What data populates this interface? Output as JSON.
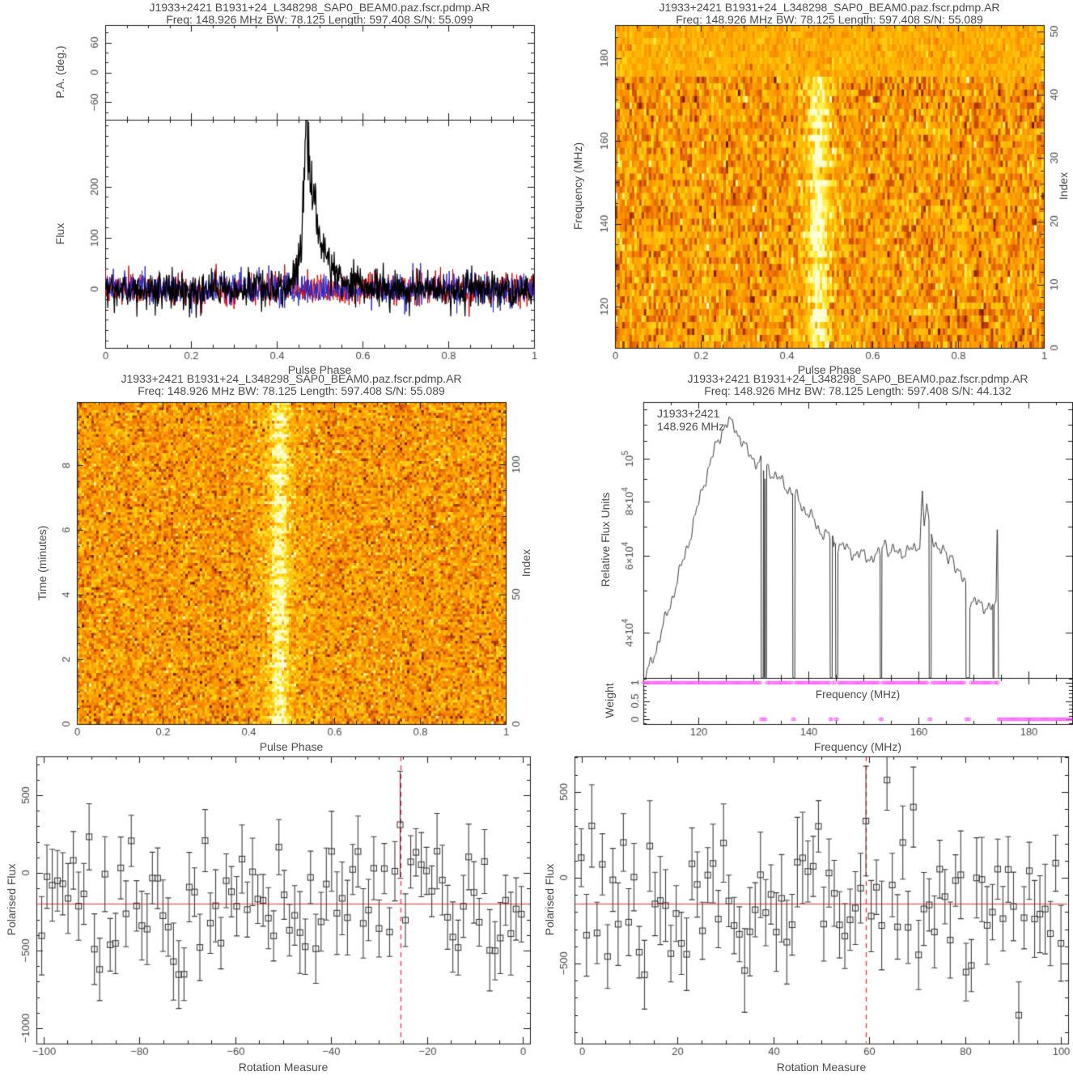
{
  "page": {
    "background": "#ffffff",
    "frame_color": "#1a1a1a",
    "text_color": "#4a4a4a"
  },
  "chart_data": [
    {
      "id": "pulse_profile",
      "type": "line",
      "title": "J1933+2421 B1931+24_L348298_SAP0_BEAM0.paz.fscr.pdmp.AR",
      "subtitle": "Freq: 148.926 MHz BW: 78.125 Length: 597.408 S/N: 55.099",
      "xlabel": "Pulse Phase",
      "xlim": [
        0,
        1
      ],
      "xminor": 0.05,
      "xticks": [
        {
          "v": 0,
          "l": "0"
        },
        {
          "v": 0.2,
          "l": "0.2"
        },
        {
          "v": 0.4,
          "l": "0.4"
        },
        {
          "v": 0.6,
          "l": "0.6"
        },
        {
          "v": 0.8,
          "l": "0.8"
        },
        {
          "v": 1,
          "l": "1"
        }
      ],
      "pa": {
        "ylabel": "P.A. (deg.)",
        "ylim": [
          -95,
          95
        ],
        "yminor": 20,
        "yticks": [
          {
            "v": 60,
            "l": "60"
          },
          {
            "v": 0,
            "l": "0"
          },
          {
            "v": -60,
            "l": "−60"
          }
        ]
      },
      "flux": {
        "ylabel": "Flux",
        "ylim": [
          -115,
          331
        ],
        "yminor": 20,
        "yticks": [
          {
            "v": 0,
            "l": "0"
          },
          {
            "v": 100,
            "l": "100"
          },
          {
            "v": 200,
            "l": "200"
          }
        ],
        "series": [
          {
            "name": "total-intensity",
            "color": "#000000",
            "noise_sigma": 18,
            "pulse": {
              "onset": 0.432,
              "peak_phase": 0.468,
              "peak_flux": 320,
              "rise_tau": 0.01,
              "fall_tau": 0.03,
              "end": 0.63
            }
          },
          {
            "name": "linear-polarisation",
            "color": "#d40000",
            "noise_sigma": 15
          },
          {
            "name": "circular-polarisation",
            "color": "#2626c8",
            "noise_sigma": 15
          }
        ]
      },
      "bins": 840,
      "seed": 7
    },
    {
      "id": "frequency_vs_phase",
      "type": "heatmap",
      "title": "J1933+2421 B1931+24_L348298_SAP0_BEAM0.paz.fscr.pdmp.AR",
      "subtitle": "Freq: 148.926 MHz BW: 78.125 Length: 597.408 S/N: 55.089",
      "xlabel": "Pulse Phase",
      "ylabel": "Frequency (MHz)",
      "ylabel_right": "Index",
      "xlim": [
        0,
        1
      ],
      "xminor": 0.05,
      "xticks": [
        {
          "v": 0,
          "l": "0"
        },
        {
          "v": 0.2,
          "l": "0.2"
        },
        {
          "v": 0.4,
          "l": "0.4"
        },
        {
          "v": 0.6,
          "l": "0.6"
        },
        {
          "v": 0.8,
          "l": "0.8"
        },
        {
          "v": 1,
          "l": "1"
        }
      ],
      "ylim": [
        110,
        188
      ],
      "yminor": 5,
      "yticks": [
        {
          "v": 120,
          "l": "120"
        },
        {
          "v": 140,
          "l": "140"
        },
        {
          "v": 160,
          "l": "160"
        },
        {
          "v": 180,
          "l": "180"
        }
      ],
      "right_lim": [
        0,
        51
      ],
      "right_minor": 2,
      "right_ticks": [
        {
          "v": 0,
          "l": "0"
        },
        {
          "v": 10,
          "l": "10"
        },
        {
          "v": 20,
          "l": "20"
        },
        {
          "v": 30,
          "l": "30"
        },
        {
          "v": 40,
          "l": "40"
        },
        {
          "v": 50,
          "l": "50"
        }
      ],
      "cols": 178,
      "rows": 50,
      "top_uniform_rows": 8,
      "stripe": {
        "center": 0.474,
        "sigma": 0.016,
        "amp": 0.42,
        "halo_sigma": 0.05,
        "halo_amp": 0.1
      },
      "seed": 21
    },
    {
      "id": "time_vs_phase",
      "type": "heatmap",
      "title": "J1933+2421 B1931+24_L348298_SAP0_BEAM0.paz.fscr.pdmp.AR",
      "subtitle": "Freq: 148.926 MHz BW: 78.125 Length: 597.408 S/N: 55.089",
      "xlabel": "Pulse Phase",
      "ylabel": "Time (minutes)",
      "ylabel_right": "Index",
      "xlim": [
        0,
        1
      ],
      "xminor": 0.05,
      "xticks": [
        {
          "v": 0,
          "l": "0"
        },
        {
          "v": 0.2,
          "l": "0.2"
        },
        {
          "v": 0.4,
          "l": "0.4"
        },
        {
          "v": 0.6,
          "l": "0.6"
        },
        {
          "v": 0.8,
          "l": "0.8"
        },
        {
          "v": 1,
          "l": "1"
        }
      ],
      "ylim": [
        0,
        9.96
      ],
      "yminor": 0.5,
      "yticks": [
        {
          "v": 0,
          "l": "0"
        },
        {
          "v": 2,
          "l": "2"
        },
        {
          "v": 4,
          "l": "4"
        },
        {
          "v": 6,
          "l": "6"
        },
        {
          "v": 8,
          "l": "8"
        }
      ],
      "right_lim": [
        0,
        124
      ],
      "right_minor": 10,
      "right_ticks": [
        {
          "v": 0,
          "l": "0"
        },
        {
          "v": 50,
          "l": "50"
        },
        {
          "v": 100,
          "l": "100"
        }
      ],
      "cols": 178,
      "rows": 120,
      "top_uniform_rows": 0,
      "stripe": {
        "center": 0.472,
        "sigma": 0.013,
        "amp": 0.45,
        "halo_sigma": 0.045,
        "halo_amp": 0.12
      },
      "seed": 33
    },
    {
      "id": "bandpass_spectrum",
      "type": "line",
      "title": "J1933+2421 B1931+24_L348298_SAP0_BEAM0.paz.fscr.pdmp.AR",
      "subtitle": "Freq: 148.926 MHz BW: 78.125 Length: 597.408 S/N: 44.132",
      "xlabel": "Frequency (MHz)",
      "ylabel": "Relative Flux Units",
      "annotation": {
        "line1": "J1933+2421",
        "line2": "148.926 MHz"
      },
      "xlim": [
        110,
        188
      ],
      "xminor": 5,
      "xticks": [
        {
          "v": 120,
          "l": "120"
        },
        {
          "v": 140,
          "l": "140"
        },
        {
          "v": 160,
          "l": "160"
        },
        {
          "v": 180,
          "l": "180"
        }
      ],
      "ylog": true,
      "ylim": [
        31500,
        135000
      ],
      "yticks": [
        {
          "v": 40000,
          "l": "4×10^4"
        },
        {
          "v": 50000
        },
        {
          "v": 60000,
          "l": "6×10^4"
        },
        {
          "v": 70000
        },
        {
          "v": 80000,
          "l": "8×10^4"
        },
        {
          "v": 90000
        },
        {
          "v": 100000,
          "l": "10^5"
        },
        {
          "v": 110000
        },
        {
          "v": 120000
        },
        {
          "v": 130000
        }
      ],
      "line_color": "#333333",
      "draw_range": [
        110.3,
        174.68
      ],
      "control_points": [
        [
          110.3,
          31500
        ],
        [
          111,
          33000
        ],
        [
          113,
          39000
        ],
        [
          115,
          47000
        ],
        [
          117,
          57000
        ],
        [
          119,
          70000
        ],
        [
          121,
          88000
        ],
        [
          123,
          105000
        ],
        [
          124.5,
          118000
        ],
        [
          125.5,
          121000
        ],
        [
          126.5,
          119000
        ],
        [
          127.5,
          113000
        ],
        [
          129,
          103000
        ],
        [
          130.5,
          99000
        ],
        [
          131.3,
          98000
        ],
        [
          132.5,
          96000
        ],
        [
          134,
          91000
        ],
        [
          135.5,
          88000
        ],
        [
          137,
          84000
        ],
        [
          138,
          81000
        ],
        [
          140,
          75000
        ],
        [
          142,
          69000
        ],
        [
          143.8,
          66000
        ],
        [
          144.9,
          64500
        ],
        [
          147,
          62000
        ],
        [
          149,
          60500
        ],
        [
          151,
          59500
        ],
        [
          153,
          60000
        ],
        [
          153.9,
          65500
        ],
        [
          154.6,
          61500
        ],
        [
          156,
          61000
        ],
        [
          158,
          61500
        ],
        [
          159.5,
          62000
        ],
        [
          160.3,
          65000
        ],
        [
          160.75,
          84000
        ],
        [
          161.1,
          70000
        ],
        [
          161.55,
          79000
        ],
        [
          161.9,
          70000
        ],
        [
          162.6,
          66000
        ],
        [
          164,
          62000
        ],
        [
          165.5,
          59000
        ],
        [
          166.2,
          61000
        ],
        [
          167,
          55000
        ],
        [
          168,
          53000
        ],
        [
          168.6,
          52500
        ],
        [
          169.5,
          47000
        ],
        [
          171,
          46500
        ],
        [
          172.5,
          46000
        ],
        [
          173.5,
          45500
        ],
        [
          174.15,
          45500
        ],
        [
          174.38,
          73000
        ],
        [
          174.55,
          45000
        ]
      ],
      "notches": [
        [
          131.4,
          132.4
        ],
        [
          137.2,
          137.6
        ],
        [
          144.0,
          144.4
        ],
        [
          145.0,
          145.4
        ],
        [
          153.1,
          153.4
        ],
        [
          162.0,
          162.4
        ],
        [
          168.7,
          169.4
        ],
        [
          173.6,
          173.8
        ],
        [
          174.56,
          174.7
        ]
      ],
      "recoveries": [
        [
          131.82,
          131.92,
          94000
        ],
        [
          132.06,
          132.16,
          90000
        ],
        [
          144.58,
          144.7,
          63000
        ]
      ],
      "weight": {
        "ylabel": "Weight",
        "inner_xlabel": "Frequency (MHz)",
        "ylim": [
          -0.13,
          1.13
        ],
        "yminor": 0.1,
        "yticks": [
          {
            "v": 0,
            "l": "0"
          },
          {
            "v": 0.5,
            "l": "0.5"
          },
          {
            "v": 1,
            "l": "1"
          }
        ],
        "color": "#f858f8",
        "one_segments": [
          [
            110,
            131.3
          ],
          [
            132.5,
            137.1
          ],
          [
            137.7,
            143.9
          ],
          [
            144.5,
            144.9
          ],
          [
            145.5,
            153.0
          ],
          [
            153.5,
            161.9
          ],
          [
            162.5,
            168.6
          ],
          [
            169.6,
            173.5
          ],
          [
            173.9,
            174.5
          ]
        ],
        "zero_segments": [
          [
            131.4,
            132.4
          ],
          [
            137.2,
            137.6
          ],
          [
            144.0,
            144.4
          ],
          [
            145.0,
            145.4
          ],
          [
            153.1,
            153.4
          ],
          [
            162.0,
            162.4
          ],
          [
            168.7,
            169.5
          ],
          [
            174.6,
            188
          ]
        ]
      }
    },
    {
      "id": "rm_scan_negative",
      "type": "scatter",
      "xlabel": "Rotation Measure",
      "ylabel": "Polarised Flux",
      "xlim": [
        -101.5,
        1.5
      ],
      "xminor": 5,
      "xticks": [
        {
          "v": -100,
          "l": "−100"
        },
        {
          "v": -80,
          "l": "−80"
        },
        {
          "v": -60,
          "l": "−60"
        },
        {
          "v": -40,
          "l": "−40"
        },
        {
          "v": -20,
          "l": "−20"
        },
        {
          "v": 0,
          "l": "0"
        }
      ],
      "ylim": [
        -1099,
        750
      ],
      "yminor": 100,
      "yticks": [
        {
          "v": 500,
          "l": "500"
        },
        {
          "v": 0,
          "l": "0"
        },
        {
          "v": -500,
          "l": "−500"
        },
        {
          "v": -1000,
          "l": "−1000"
        }
      ],
      "n": 92,
      "x_start": -100.4,
      "x_step": 1.1,
      "mean": -200,
      "sigma": 180,
      "err_mean": 210,
      "err_spread": 60,
      "line_y": -200,
      "vline_x": -25.6,
      "best": {
        "x": -25.6,
        "y": 310,
        "err": 345
      },
      "colors": {
        "marker": "#3d3d3d",
        "line": "#ff3030"
      },
      "seed": 11
    },
    {
      "id": "rm_scan_positive",
      "type": "scatter",
      "xlabel": "Rotation Measure",
      "ylabel": "Polarised Flux",
      "xlim": [
        -1.5,
        101.5
      ],
      "xminor": 5,
      "xticks": [
        {
          "v": 0,
          "l": "0"
        },
        {
          "v": 20,
          "l": "20"
        },
        {
          "v": 40,
          "l": "40"
        },
        {
          "v": 60,
          "l": "60"
        },
        {
          "v": 80,
          "l": "80"
        },
        {
          "v": 100,
          "l": "100"
        }
      ],
      "ylim": [
        -967,
        707
      ],
      "yminor": 100,
      "yticks": [
        {
          "v": 500,
          "l": "500"
        },
        {
          "v": 0,
          "l": "0"
        },
        {
          "v": -500,
          "l": "−500"
        }
      ],
      "n": 92,
      "x_start": -0.1,
      "x_step": 1.1,
      "mean": -150,
      "sigma": 190,
      "err_mean": 210,
      "err_spread": 60,
      "line_y": -150,
      "vline_x": 59.3,
      "best": {
        "x": 59.3,
        "y": 330,
        "err": 320
      },
      "colors": {
        "marker": "#3d3d3d",
        "line": "#ff3030"
      },
      "seed": 12
    }
  ]
}
